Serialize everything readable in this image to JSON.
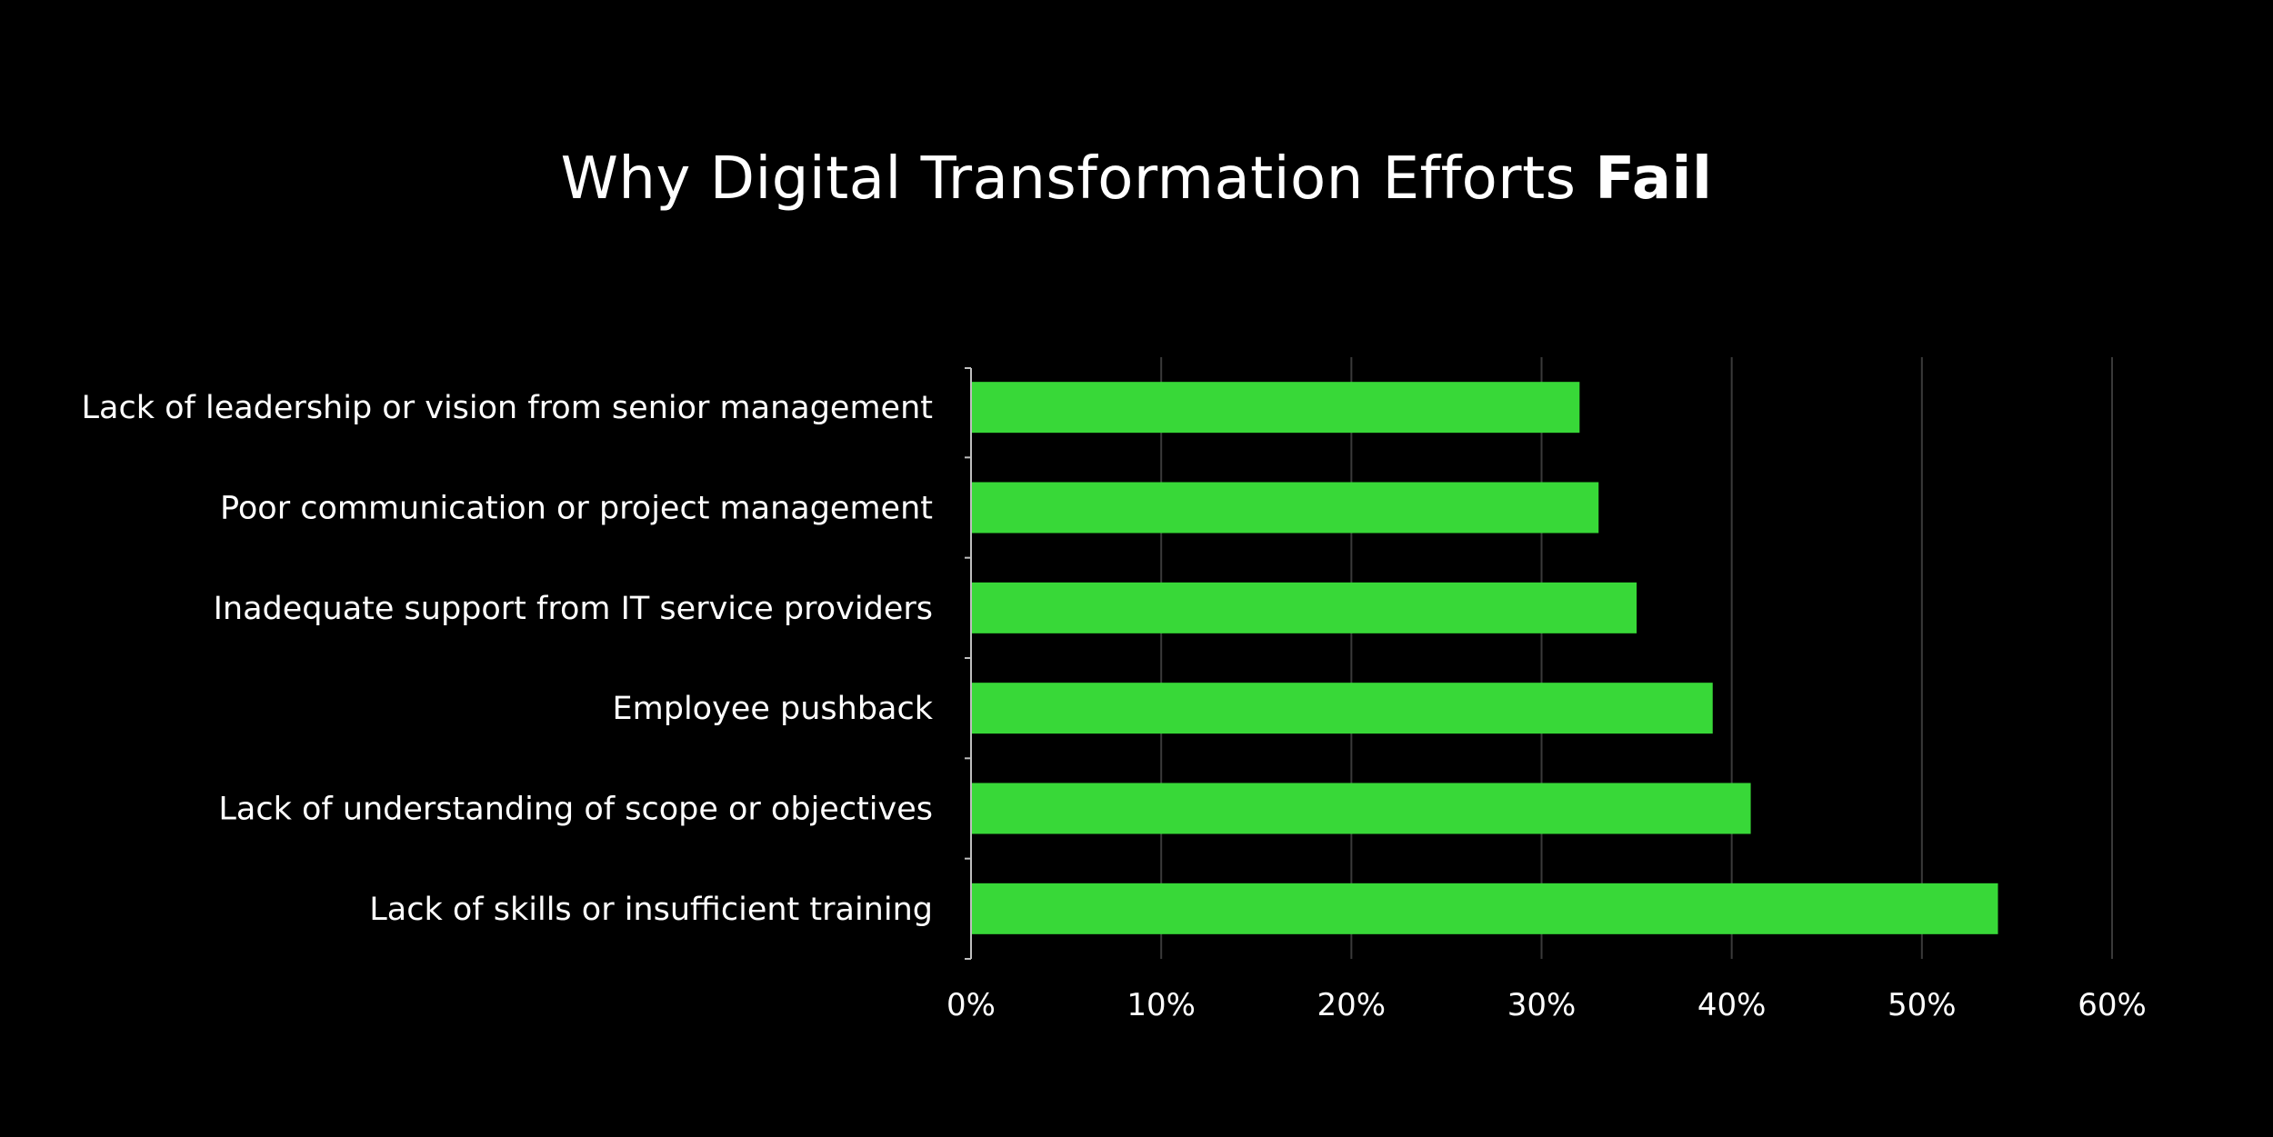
{
  "chart_data": {
    "type": "bar",
    "orientation": "horizontal",
    "title": {
      "text": "Why Digital Transformation Efforts",
      "emphasis": "Fail"
    },
    "categories": [
      "Lack of leadership or vision from senior management",
      "Poor communication or project management",
      "Inadequate support from IT service providers",
      "Employee pushback",
      "Lack of understanding of scope or objectives",
      "Lack of skills or insufficient training"
    ],
    "values": [
      32,
      33,
      35,
      39,
      41,
      54
    ],
    "value_unit": "%",
    "xlim": [
      0,
      60
    ],
    "x_ticks": [
      "0%",
      "10%",
      "20%",
      "30%",
      "40%",
      "50%",
      "60%"
    ],
    "grid": "vertical",
    "legend": "none",
    "colors": {
      "background": "#000000",
      "bar": "#38d838",
      "text": "#ffffff",
      "grid": "#3a3a3a",
      "axis": "#bfbfbf"
    }
  }
}
